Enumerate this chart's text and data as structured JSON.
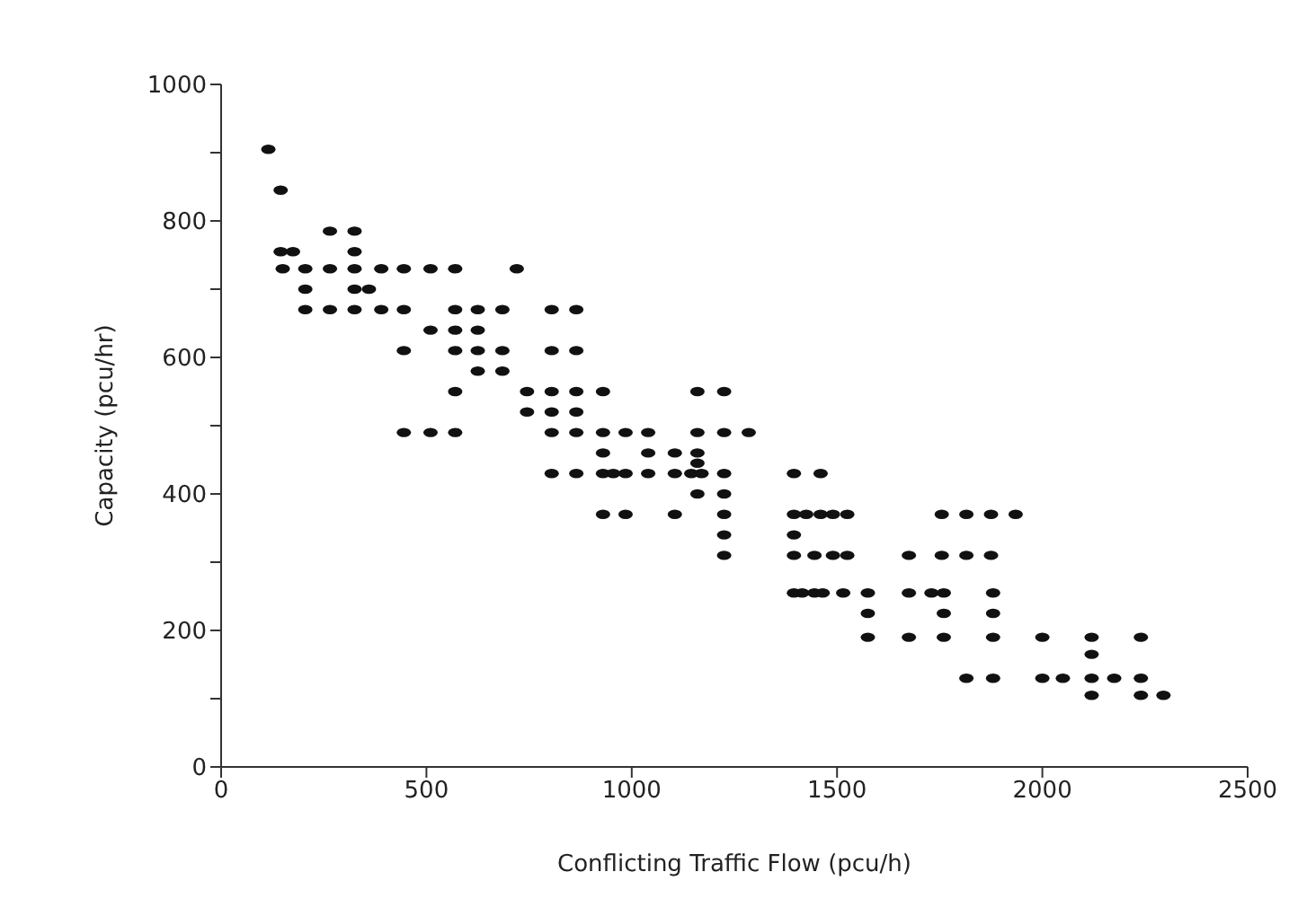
{
  "chart_data": {
    "type": "scatter",
    "xlabel": "Conflicting Traffic Flow (pcu/h)",
    "ylabel": "Capacity (pcu/hr)",
    "xlim": [
      0,
      2500
    ],
    "xticks": [
      0,
      500,
      1000,
      1500,
      2000,
      2500
    ],
    "ylim": [
      0,
      1000
    ],
    "yticks": [
      0,
      {
        "value": 100,
        "label": null
      },
      200,
      {
        "value": 300,
        "label": null
      },
      400,
      {
        "value": 500,
        "label": null
      },
      600,
      {
        "value": 700,
        "label": null
      },
      800,
      {
        "value": 900,
        "label": null
      },
      1000
    ],
    "grid": false,
    "legend": false,
    "marker": "circle",
    "series": [
      {
        "color": "#111111",
        "x": [
          115,
          145,
          265,
          325,
          145,
          175,
          325,
          150,
          205,
          265,
          325,
          390,
          445,
          510,
          570,
          720,
          205,
          325,
          360,
          205,
          265,
          325,
          390,
          445,
          570,
          625,
          685,
          805,
          865,
          510,
          570,
          625,
          445,
          570,
          625,
          685,
          805,
          865,
          625,
          685,
          570,
          745,
          805,
          865,
          930,
          1160,
          1225,
          745,
          805,
          865,
          445,
          510,
          570,
          805,
          865,
          930,
          985,
          1040,
          1160,
          1225,
          1285,
          930,
          1040,
          1105,
          1160,
          1160,
          805,
          865,
          930,
          955,
          985,
          1040,
          1105,
          1145,
          1170,
          1225,
          1395,
          1460,
          1160,
          1225,
          930,
          985,
          1105,
          1225,
          1395,
          1425,
          1460,
          1490,
          1525,
          1755,
          1815,
          1875,
          1935,
          1225,
          1395,
          1225,
          1395,
          1445,
          1490,
          1525,
          1675,
          1755,
          1815,
          1875,
          1395,
          1415,
          1445,
          1465,
          1515,
          1575,
          1675,
          1730,
          1760,
          1880,
          1575,
          1760,
          1880,
          1575,
          1675,
          1760,
          1880,
          2000,
          2120,
          2240,
          2120,
          1815,
          1880,
          2000,
          2050,
          2120,
          2175,
          2240,
          2120,
          2240,
          2295
        ],
        "values": [
          905,
          845,
          785,
          785,
          755,
          755,
          755,
          730,
          730,
          730,
          730,
          730,
          730,
          730,
          730,
          730,
          700,
          700,
          700,
          670,
          670,
          670,
          670,
          670,
          670,
          670,
          670,
          670,
          670,
          640,
          640,
          640,
          610,
          610,
          610,
          610,
          610,
          610,
          580,
          580,
          550,
          550,
          550,
          550,
          550,
          550,
          550,
          520,
          520,
          520,
          490,
          490,
          490,
          490,
          490,
          490,
          490,
          490,
          490,
          490,
          490,
          460,
          460,
          460,
          460,
          445,
          430,
          430,
          430,
          430,
          430,
          430,
          430,
          430,
          430,
          430,
          430,
          430,
          400,
          400,
          370,
          370,
          370,
          370,
          370,
          370,
          370,
          370,
          370,
          370,
          370,
          370,
          370,
          340,
          340,
          310,
          310,
          310,
          310,
          310,
          310,
          310,
          310,
          310,
          255,
          255,
          255,
          255,
          255,
          255,
          255,
          255,
          255,
          255,
          225,
          225,
          225,
          190,
          190,
          190,
          190,
          190,
          190,
          190,
          165,
          130,
          130,
          130,
          130,
          130,
          130,
          130,
          105,
          105,
          105
        ]
      }
    ]
  }
}
